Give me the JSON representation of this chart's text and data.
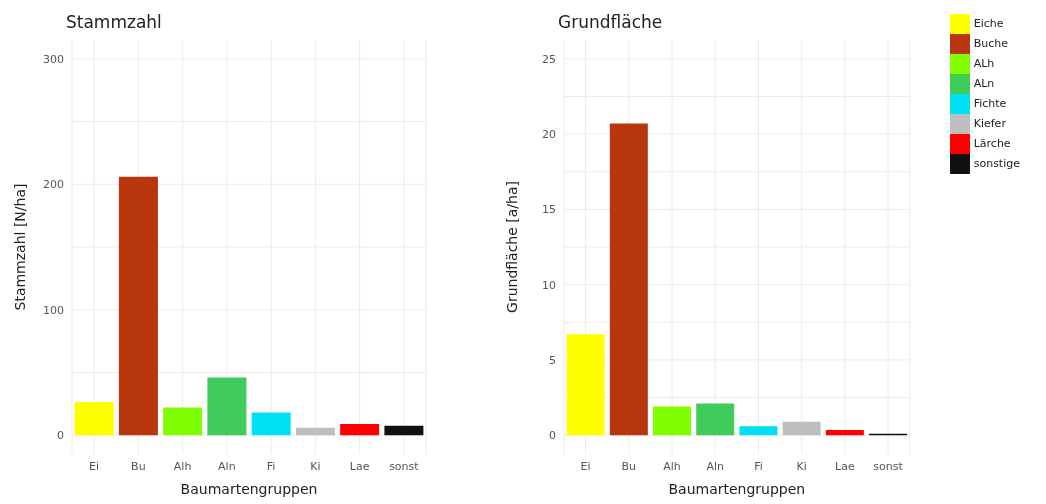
{
  "chart_data": [
    {
      "type": "bar",
      "title": "Stammzahl",
      "xlabel": "Baumartengruppen",
      "ylabel": "Stammzahl [N/ha]",
      "categories": [
        "Ei",
        "Bu",
        "Alh",
        "Aln",
        "Fi",
        "Ki",
        "Lae",
        "sonst"
      ],
      "values": [
        26.5,
        206,
        22,
        46,
        18,
        6,
        9,
        7.5
      ],
      "colors": [
        "#ffff00",
        "#b8360b",
        "#80ff00",
        "#3fcc5a",
        "#00e0f5",
        "#bebebe",
        "#ff0000",
        "#111111"
      ],
      "ylim": [
        -15,
        315
      ],
      "yticks": [
        0,
        {
          "value": 50,
          "label": null
        },
        100,
        {
          "value": 150,
          "label": null
        },
        200,
        {
          "value": 250,
          "label": null
        },
        300
      ],
      "grid": true,
      "legend": false
    },
    {
      "type": "bar",
      "title": "Grundfläche",
      "xlabel": "Baumartengruppen",
      "ylabel": "Grundfläche [a/ha]",
      "categories": [
        "Ei",
        "Bu",
        "Alh",
        "Aln",
        "Fi",
        "Ki",
        "Lae",
        "sonst"
      ],
      "stacked": true,
      "series": [
        {
          "name": "Eiche",
          "color": "#ffff00",
          "values": [
            6.7,
            null,
            null,
            null,
            null,
            null,
            null,
            null
          ]
        },
        {
          "name": "Buche",
          "color": "#b8360b",
          "values": [
            null,
            20.7,
            null,
            null,
            null,
            null,
            null,
            null
          ]
        },
        {
          "name": "ALh",
          "color": "#80ff00",
          "values": [
            null,
            null,
            1.9,
            null,
            null,
            null,
            null,
            null
          ]
        },
        {
          "name": "ALn",
          "color": "#3fcc5a",
          "values": [
            null,
            null,
            null,
            2.1,
            null,
            null,
            null,
            null
          ]
        },
        {
          "name": "Fichte",
          "color": "#00e0f5",
          "values": [
            null,
            null,
            null,
            null,
            0.6,
            null,
            null,
            null
          ]
        },
        {
          "name": "Kiefer",
          "color": "#bebebe",
          "values": [
            null,
            null,
            null,
            null,
            null,
            0.9,
            null,
            null
          ]
        },
        {
          "name": "Lärche",
          "color": "#ff0000",
          "values": [
            null,
            null,
            null,
            null,
            null,
            null,
            0.35,
            null
          ]
        },
        {
          "name": "sonstige",
          "color": "#111111",
          "values": [
            null,
            null,
            null,
            null,
            null,
            null,
            null,
            0.1
          ]
        }
      ],
      "ylim": [
        -1.25,
        26.25
      ],
      "yticks": [
        0,
        {
          "value": 2.5,
          "label": null
        },
        5,
        {
          "value": 7.5,
          "label": null
        },
        10,
        {
          "value": 12.5,
          "label": null
        },
        15,
        {
          "value": 17.5,
          "label": null
        },
        20,
        {
          "value": 22.5,
          "label": null
        },
        25
      ],
      "grid": true,
      "legend": "right"
    }
  ]
}
